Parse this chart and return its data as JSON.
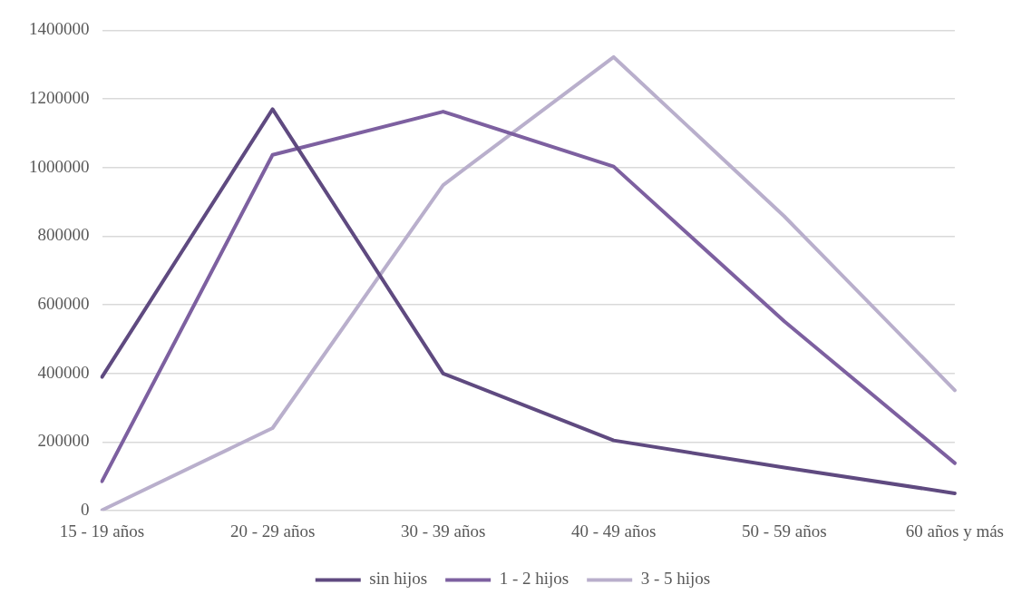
{
  "chart_data": {
    "type": "line",
    "categories": [
      "15 - 19 años",
      "20 - 29 años",
      "30 - 39 años",
      "40 - 49 años",
      "50 - 59 años",
      "60 años y más"
    ],
    "series": [
      {
        "name": "sin hijos",
        "color": "#5f4a80",
        "values": [
          390000,
          1170000,
          400000,
          205000,
          126000,
          51000
        ]
      },
      {
        "name": "1 - 2 hijos",
        "color": "#7d60a0",
        "values": [
          86000,
          1037000,
          1163000,
          1003000,
          552000,
          139000
        ]
      },
      {
        "name": "3 - 5 hijos",
        "color": "#b9afcc",
        "values": [
          2000,
          241000,
          949000,
          1322000,
          858000,
          351000
        ]
      }
    ],
    "ylim": [
      0,
      1400000
    ],
    "yticks": [
      0,
      200000,
      400000,
      600000,
      800000,
      1000000,
      1200000,
      1400000
    ],
    "grid": "y",
    "legend": "bottom",
    "marker": "none",
    "line_style": "solid"
  }
}
